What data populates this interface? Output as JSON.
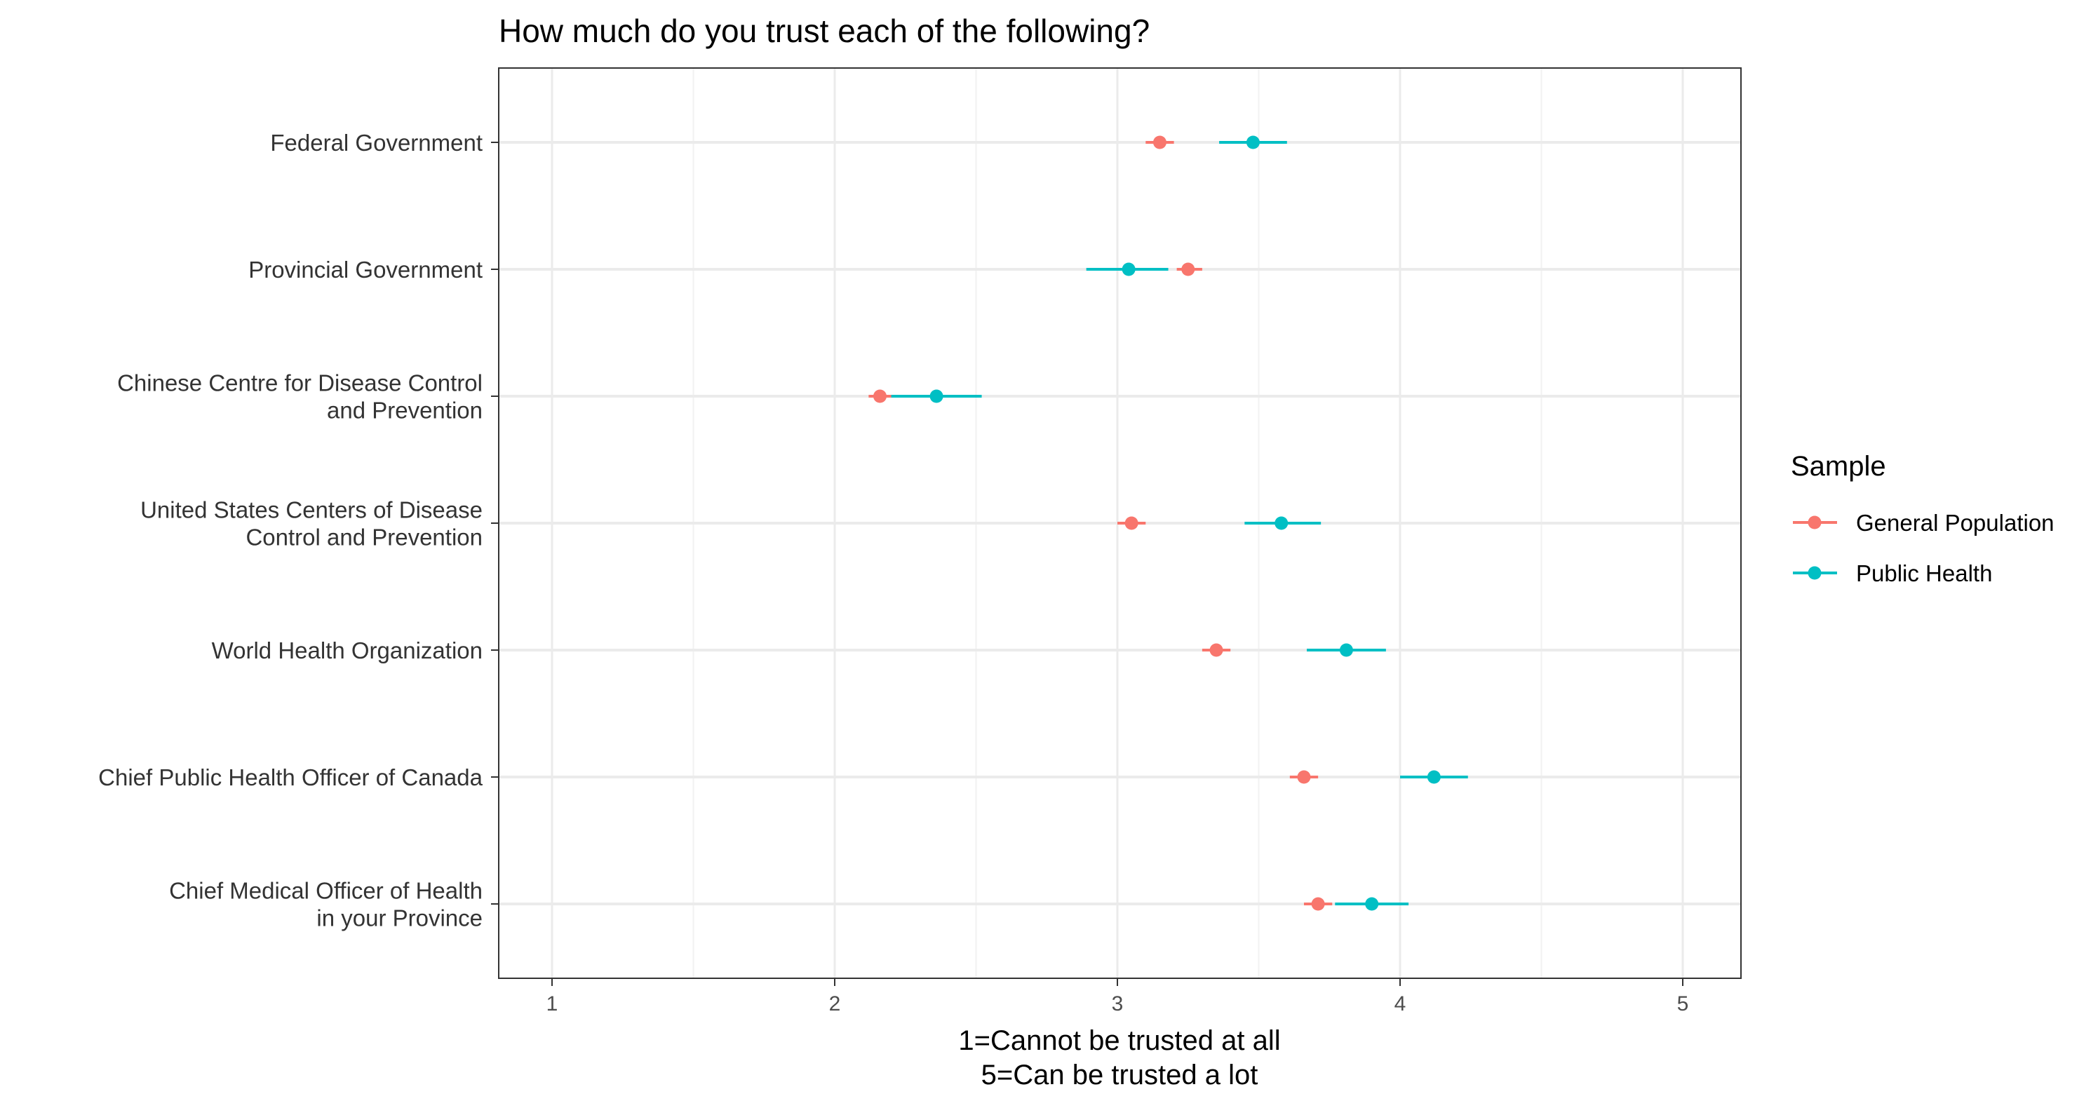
{
  "colors": {
    "general_population": "#F8766D",
    "public_health": "#00BFC4",
    "grid_major": "#EBEBEB",
    "grid_minor": "#F2F2F2",
    "panel_border": "#333333"
  },
  "chart_data": {
    "type": "scatter",
    "title": "How much do you trust each of the following?",
    "xlabel": [
      "1=Cannot be trusted at all",
      "5=Can be trusted a lot"
    ],
    "ylabel": "",
    "xlim": [
      0.8,
      5.2
    ],
    "xticks": [
      1,
      2,
      3,
      4,
      5
    ],
    "grid": true,
    "legend": {
      "title": "Sample",
      "placement": "right",
      "entries": [
        "General Population",
        "Public Health"
      ]
    },
    "categories": [
      [
        "Federal Government"
      ],
      [
        "Provincial Government"
      ],
      [
        "Chinese Centre for Disease Control",
        "and Prevention"
      ],
      [
        "United States Centers of Disease",
        "Control and Prevention"
      ],
      [
        "World Health Organization"
      ],
      [
        "Chief Public Health Officer of Canada"
      ],
      [
        "Chief Medical Officer of Health",
        "in your Province"
      ]
    ],
    "series": [
      {
        "name": "General Population",
        "color": "#F8766D",
        "values": [
          3.15,
          3.25,
          2.16,
          3.05,
          3.35,
          3.66,
          3.71
        ],
        "lower": [
          3.1,
          3.21,
          2.12,
          3.0,
          3.3,
          3.61,
          3.66
        ],
        "upper": [
          3.2,
          3.3,
          2.21,
          3.1,
          3.4,
          3.71,
          3.76
        ]
      },
      {
        "name": "Public Health",
        "color": "#00BFC4",
        "values": [
          3.48,
          3.04,
          2.36,
          3.58,
          3.81,
          4.12,
          3.9
        ],
        "lower": [
          3.36,
          2.89,
          2.2,
          3.45,
          3.67,
          4.0,
          3.77
        ],
        "upper": [
          3.6,
          3.18,
          2.52,
          3.72,
          3.95,
          4.24,
          4.03
        ]
      }
    ]
  }
}
